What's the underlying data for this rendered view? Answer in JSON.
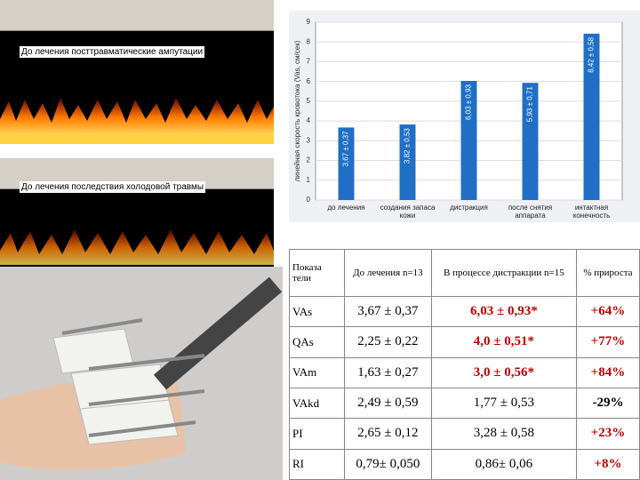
{
  "doppler_images": [
    {
      "caption": "До лечения посттравматические ампутации"
    },
    {
      "caption": "До лечения последствия холодовой травмы"
    }
  ],
  "chart_data": {
    "type": "bar",
    "y_label": "линейная скорость кровотока (Vas, см/сек)",
    "categories": [
      "до лечения",
      "создания запаса кожи",
      "дистракция",
      "после снятия аппарата",
      "интактная конечность"
    ],
    "values": [
      3.67,
      3.82,
      6.03,
      5.93,
      8.42
    ],
    "value_labels": [
      "3,67 ± 0,37",
      "3,82 ± 0,53",
      "6,03 ± 0,93",
      "5,93 ± 0,71",
      "8,42 ± 0,58"
    ],
    "color": "#1f6fc4",
    "ylim": [
      0,
      9
    ],
    "yticks": [
      0,
      1,
      2,
      3,
      4,
      5,
      6,
      7,
      8,
      9
    ],
    "grid": true
  },
  "table": {
    "header": [
      "Показа тели",
      "До лечения n=13",
      "В процессе дистракции n=15",
      "% прироста"
    ],
    "rows": [
      [
        "VAs",
        "3,67 ± 0,37",
        "6,03 ± 0,93*",
        "+64%"
      ],
      [
        "QAs",
        "2,25 ± 0,22",
        "4,0 ± 0,51*",
        "+77%"
      ],
      [
        "VAm",
        "1,63 ± 0,27",
        "3,0 ± 0,56*",
        "+84%"
      ],
      [
        "VAkd",
        "2,49 ± 0,59",
        "1,77 ± 0,53",
        "-29%"
      ],
      [
        "PI",
        "2,65 ± 0,12",
        "3,28 ± 0,58",
        "+23%"
      ],
      [
        "RI",
        "0,79± 0,050",
        "0,86± 0,06",
        "+8%"
      ]
    ]
  }
}
